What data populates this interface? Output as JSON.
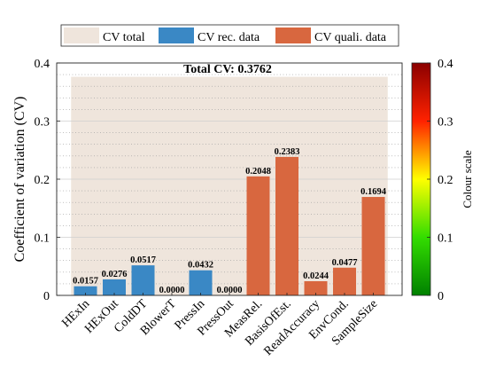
{
  "chart_data": {
    "type": "bar",
    "title": "",
    "xlabel": "",
    "ylabel": "Coefficient of variation (CV)",
    "ylim": [
      0,
      0.4
    ],
    "yticks": [
      "0",
      "0.1",
      "0.2",
      "0.3",
      "0.4"
    ],
    "yticks_values": [
      0,
      0.1,
      0.2,
      0.3,
      0.4
    ],
    "grid": "horizontal dotted",
    "annotation": "Total CV: 0.3762",
    "total_cv": 0.3762,
    "categories": [
      "HExIn",
      "HExOut",
      "ColdDT",
      "BlowerT",
      "PressIn",
      "PressOut",
      "MeasRel.",
      "BasisOfEst.",
      "ReadAccuracy",
      "EnvCond.",
      "SampleSize"
    ],
    "values": [
      0.0157,
      0.0276,
      0.0517,
      0.0,
      0.0432,
      0.0,
      0.2048,
      0.2383,
      0.0244,
      0.0477,
      0.1694
    ],
    "value_labels": [
      "0.0157",
      "0.0276",
      "0.0517",
      "0.0000",
      "0.0432",
      "0.0000",
      "0.2048",
      "0.2383",
      "0.0244",
      "0.0477",
      "0.1694"
    ],
    "groups": [
      "rec",
      "rec",
      "rec",
      "rec",
      "rec",
      "rec",
      "quali",
      "quali",
      "quali",
      "quali",
      "quali"
    ],
    "legend": {
      "placement": "top",
      "entries": [
        {
          "label": "CV total",
          "color": "#efe5dc"
        },
        {
          "label": "CV rec. data",
          "color": "#3a88c5"
        },
        {
          "label": "CV quali. data",
          "color": "#d8673f"
        }
      ]
    },
    "colorbar": {
      "label": "Colour scale",
      "range": [
        0,
        0.4
      ],
      "ticks": [
        "0",
        "0.1",
        "0.2",
        "0.3",
        "0.4"
      ],
      "ticks_values": [
        0,
        0.1,
        0.2,
        0.3,
        0.4
      ],
      "colors": [
        "#008000",
        "#33dd00",
        "#ffff00",
        "#ff2200",
        "#8b0000"
      ]
    },
    "colors": {
      "rec": "#3a88c5",
      "quali": "#d8673f",
      "total": "#efe5dc"
    }
  }
}
